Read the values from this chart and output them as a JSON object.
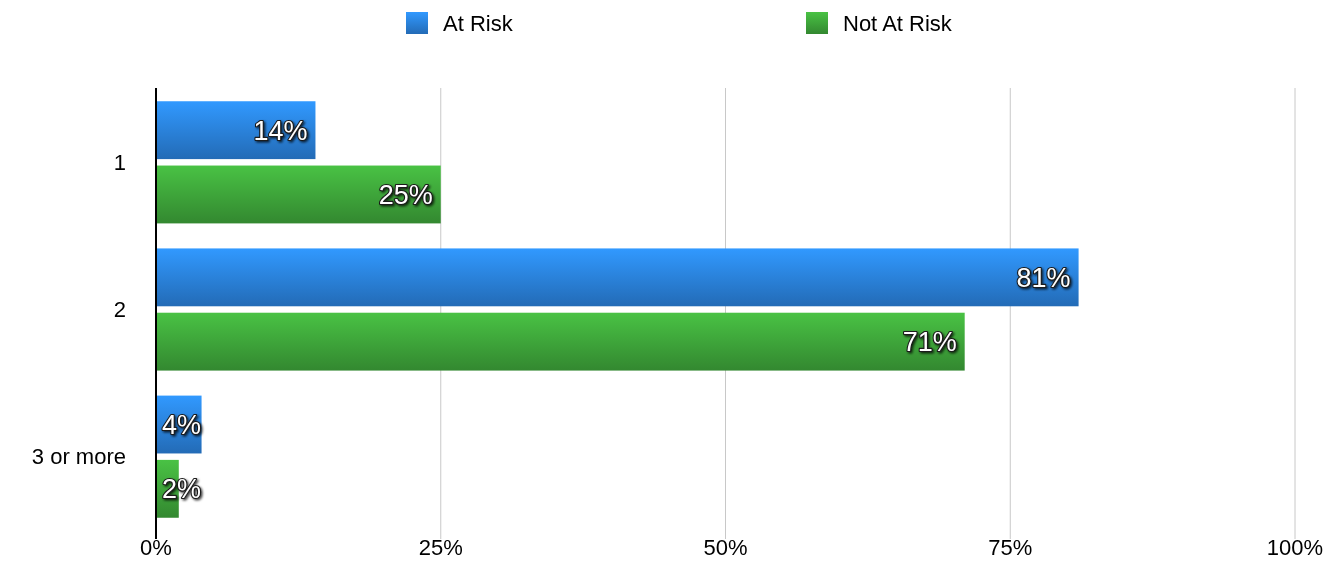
{
  "chart_data": {
    "type": "bar",
    "orientation": "horizontal",
    "categories": [
      "1",
      "2",
      "3 or more"
    ],
    "series": [
      {
        "name": "At Risk",
        "color": "#2a82de",
        "values": [
          14,
          81,
          4
        ],
        "value_labels": [
          "14%",
          "81%",
          "4%"
        ]
      },
      {
        "name": "Not At Risk",
        "color": "#3ea53a",
        "values": [
          25,
          71,
          2
        ],
        "value_labels": [
          "25%",
          "71%",
          "2%"
        ]
      }
    ],
    "xlim": [
      0,
      100
    ],
    "xticks": [
      {
        "value": 0,
        "label": "0%"
      },
      {
        "value": 25,
        "label": "25%"
      },
      {
        "value": 50,
        "label": "50%"
      },
      {
        "value": 75,
        "label": "75%"
      },
      {
        "value": 100,
        "label": "100%"
      }
    ],
    "grid": "x",
    "legend": "top"
  }
}
